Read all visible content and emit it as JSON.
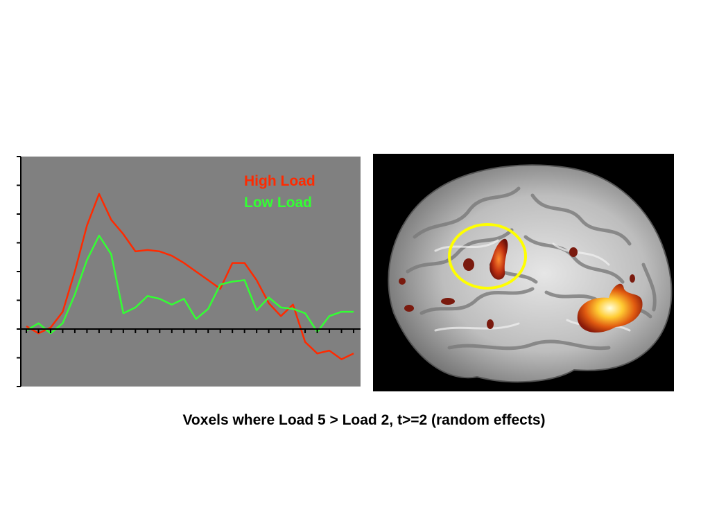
{
  "caption": "Voxels where Load 5 > Load 2, t>=2 (random effects)",
  "colors": {
    "plot_background": "#808080",
    "high_load": "#ff2a00",
    "low_load": "#33ff33",
    "roi_circle": "#ffff00",
    "brain_background": "#000000"
  },
  "brain_image": {
    "description_icon": "sagittal-brain-mri-icon",
    "roi_marker": "circle"
  },
  "chart_data": {
    "type": "line",
    "title": "",
    "xlabel": "",
    "ylabel": "",
    "x": [
      0,
      1,
      2,
      3,
      4,
      5,
      6,
      7,
      8,
      9,
      10,
      11,
      12,
      13,
      14,
      15,
      16,
      17,
      18,
      19,
      20,
      21,
      22,
      23,
      24,
      25,
      26,
      27
    ],
    "ylim": [
      -2,
      6
    ],
    "y_tick_count": 9,
    "x_tick_count": 28,
    "grid": false,
    "legend_placement": "top-right",
    "series": [
      {
        "name": "High Load",
        "values": [
          0.1,
          -0.15,
          0.05,
          0.6,
          2.0,
          3.6,
          4.7,
          3.8,
          3.3,
          2.7,
          2.75,
          2.7,
          2.55,
          2.3,
          2.0,
          1.7,
          1.4,
          2.3,
          2.3,
          1.7,
          0.9,
          0.45,
          0.85,
          -0.45,
          -0.85,
          -0.75,
          -1.05,
          -0.85
        ]
      },
      {
        "name": "Low Load",
        "values": [
          -0.05,
          0.2,
          -0.15,
          0.2,
          1.2,
          2.4,
          3.25,
          2.6,
          0.55,
          0.75,
          1.15,
          1.05,
          0.85,
          1.05,
          0.35,
          0.7,
          1.55,
          1.65,
          1.7,
          0.65,
          1.1,
          0.75,
          0.7,
          0.55,
          -0.1,
          0.45,
          0.6,
          0.6
        ]
      }
    ]
  }
}
